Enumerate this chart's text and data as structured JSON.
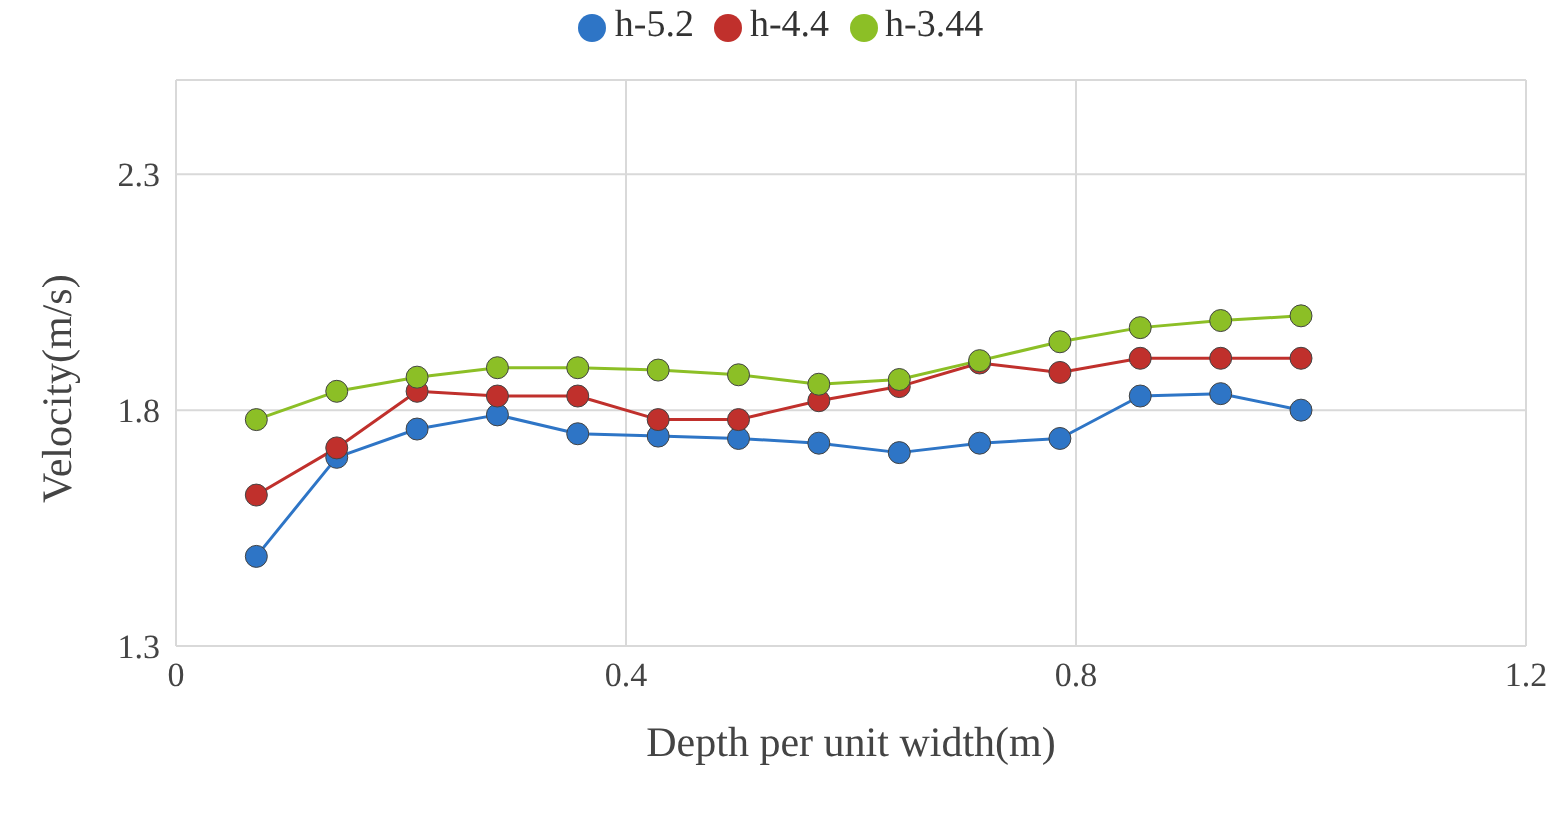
{
  "chart_data": {
    "type": "line",
    "xlabel": "Depth per unit width(m)",
    "ylabel": "Velocity(m/s)",
    "x": [
      0.0714,
      0.1429,
      0.2143,
      0.2857,
      0.3571,
      0.4286,
      0.5,
      0.5714,
      0.6429,
      0.7143,
      0.7857,
      0.8571,
      0.9286,
      1.0
    ],
    "series": [
      {
        "name": "h-5.2",
        "color": "#2e75c6",
        "values": [
          1.49,
          1.7,
          1.76,
          1.79,
          1.75,
          1.745,
          1.74,
          1.73,
          1.71,
          1.73,
          1.74,
          1.83,
          1.835,
          1.8
        ]
      },
      {
        "name": "h-4.4",
        "color": "#c0302c",
        "values": [
          1.62,
          1.72,
          1.84,
          1.83,
          1.83,
          1.78,
          1.78,
          1.82,
          1.85,
          1.9,
          1.88,
          1.91,
          1.91,
          1.91
        ]
      },
      {
        "name": "h-3.44",
        "color": "#8cbf26",
        "values": [
          1.78,
          1.84,
          1.87,
          1.89,
          1.89,
          1.885,
          1.875,
          1.855,
          1.865,
          1.905,
          1.945,
          1.975,
          1.99,
          2.0
        ]
      }
    ],
    "xlim": [
      0,
      1.2
    ],
    "xticks": [
      0,
      0.4,
      0.8,
      1.2
    ],
    "ylim": [
      1.3,
      2.5
    ],
    "yticks": [
      1.3,
      1.8,
      2.3,
      {
        "value": 2.5,
        "label": null
      }
    ],
    "grid": true,
    "legend": "top",
    "marker": "circle",
    "line_style": "solid"
  }
}
